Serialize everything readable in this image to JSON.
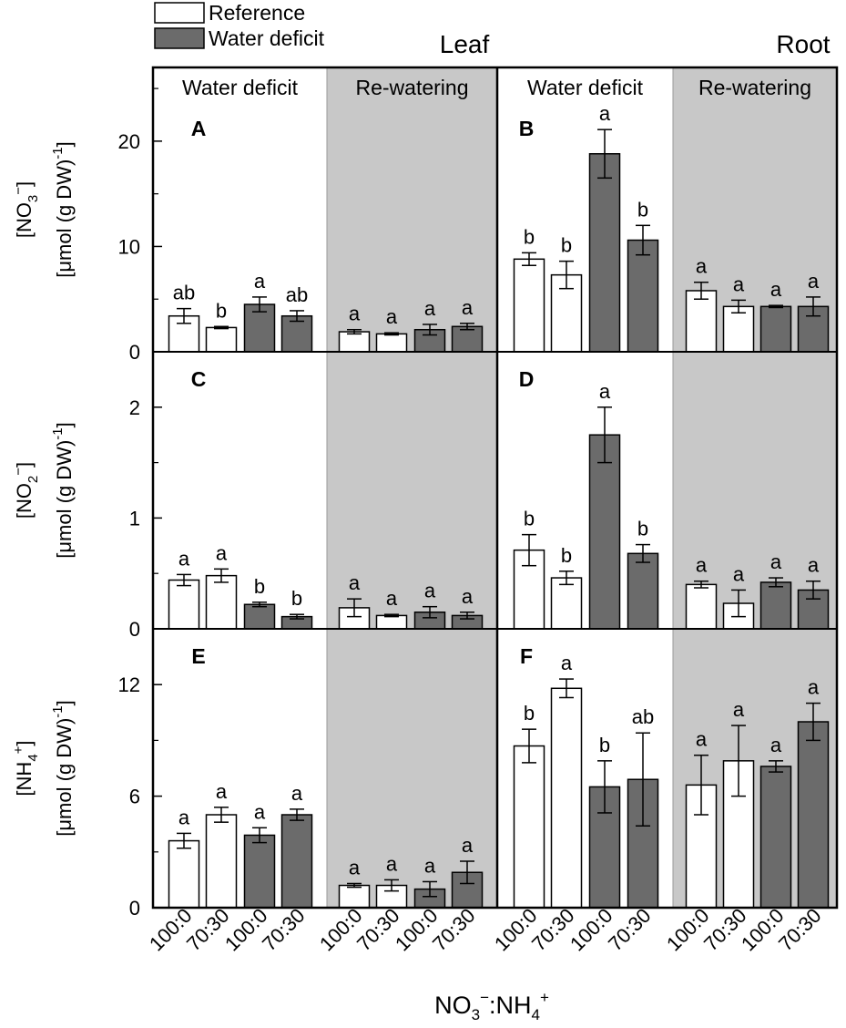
{
  "chart_data": {
    "type": "bar",
    "x_axis_label": {
      "base": "NO",
      "sub": "3",
      "sup": "−",
      "mid": ":NH",
      "sub2": "4",
      "sup2": "+"
    },
    "legend": [
      {
        "key": "reference",
        "label": "Reference",
        "color": "#ffffff"
      },
      {
        "key": "deficit",
        "label": "Water deficit",
        "color": "#6b6b6b"
      }
    ],
    "columns": [
      {
        "title": "Leaf",
        "periods": [
          "Water deficit",
          "Re-watering"
        ]
      },
      {
        "title": "Root",
        "periods": [
          "Water deficit",
          "Re-watering"
        ]
      }
    ],
    "rewatering_shade": "#c8c8c8",
    "categories": [
      "100:0",
      "70:30",
      "100:0",
      "70:30"
    ],
    "bar_groups": [
      "reference",
      "reference",
      "deficit",
      "deficit"
    ],
    "rows": [
      {
        "ylabel_top": {
          "base": "[NO",
          "sub": "3",
          "sup": "−",
          "tail": "]"
        },
        "ylabel_bottom": {
          "base": "[μmol (g DW)",
          "sup": "-1",
          "tail": "]"
        },
        "ylim": [
          0,
          27
        ],
        "ticks": [
          0,
          10,
          20
        ],
        "panels": [
          {
            "label": "A",
            "water_deficit": {
              "values": [
                3.4,
                2.3,
                4.5,
                3.4
              ],
              "errors": [
                0.7,
                0.1,
                0.7,
                0.5
              ],
              "letters": [
                "ab",
                "b",
                "a",
                "ab"
              ]
            },
            "re_watering": {
              "values": [
                1.9,
                1.7,
                2.1,
                2.4
              ],
              "errors": [
                0.2,
                0.1,
                0.5,
                0.3
              ],
              "letters": [
                "a",
                "a",
                "a",
                "a"
              ]
            }
          },
          {
            "label": "B",
            "water_deficit": {
              "values": [
                8.8,
                7.3,
                18.8,
                10.6
              ],
              "errors": [
                0.6,
                1.3,
                2.3,
                1.4
              ],
              "letters": [
                "b",
                "b",
                "a",
                "b"
              ]
            },
            "re_watering": {
              "values": [
                5.8,
                4.3,
                4.3,
                4.3
              ],
              "errors": [
                0.8,
                0.6,
                0.1,
                0.9
              ],
              "letters": [
                "a",
                "a",
                "a",
                "a"
              ]
            }
          }
        ]
      },
      {
        "ylabel_top": {
          "base": "[NO",
          "sub": "2",
          "sup": "−",
          "tail": "]"
        },
        "ylabel_bottom": {
          "base": "[μmol (g DW)",
          "sup": "-1",
          "tail": "]"
        },
        "ylim": [
          0,
          2.5
        ],
        "ticks": [
          0,
          1,
          2
        ],
        "panels": [
          {
            "label": "C",
            "water_deficit": {
              "values": [
                0.44,
                0.48,
                0.22,
                0.11
              ],
              "errors": [
                0.05,
                0.06,
                0.02,
                0.02
              ],
              "letters": [
                "a",
                "a",
                "b",
                "b"
              ]
            },
            "re_watering": {
              "values": [
                0.19,
                0.12,
                0.15,
                0.12
              ],
              "errors": [
                0.08,
                0.01,
                0.05,
                0.03
              ],
              "letters": [
                "a",
                "a",
                "a",
                "a"
              ]
            }
          },
          {
            "label": "D",
            "water_deficit": {
              "values": [
                0.71,
                0.46,
                1.75,
                0.68
              ],
              "errors": [
                0.14,
                0.06,
                0.25,
                0.08
              ],
              "letters": [
                "b",
                "b",
                "a",
                "b"
              ]
            },
            "re_watering": {
              "values": [
                0.4,
                0.23,
                0.42,
                0.35
              ],
              "errors": [
                0.03,
                0.12,
                0.04,
                0.08
              ],
              "letters": [
                "a",
                "a",
                "a",
                "a"
              ]
            }
          }
        ]
      },
      {
        "ylabel_top": {
          "base": "[NH",
          "sub": "4",
          "sup": "+",
          "tail": "]"
        },
        "ylabel_bottom": {
          "base": "[μmol (g DW)",
          "sup": "-1",
          "tail": "]"
        },
        "ylim": [
          0,
          15
        ],
        "ticks": [
          0,
          6,
          12
        ],
        "panels": [
          {
            "label": "E",
            "water_deficit": {
              "values": [
                3.6,
                5.0,
                3.9,
                5.0
              ],
              "errors": [
                0.4,
                0.4,
                0.4,
                0.3
              ],
              "letters": [
                "a",
                "a",
                "a",
                "a"
              ]
            },
            "re_watering": {
              "values": [
                1.2,
                1.2,
                1.0,
                1.9
              ],
              "errors": [
                0.1,
                0.3,
                0.4,
                0.6
              ],
              "letters": [
                "a",
                "a",
                "a",
                "a"
              ]
            }
          },
          {
            "label": "F",
            "water_deficit": {
              "values": [
                8.7,
                11.8,
                6.5,
                6.9
              ],
              "errors": [
                0.9,
                0.5,
                1.4,
                2.5
              ],
              "letters": [
                "b",
                "a",
                "b",
                "ab"
              ]
            },
            "re_watering": {
              "values": [
                6.6,
                7.9,
                7.6,
                10.0
              ],
              "errors": [
                1.6,
                1.9,
                0.3,
                1.0
              ],
              "letters": [
                "a",
                "a",
                "a",
                "a"
              ]
            }
          }
        ]
      }
    ]
  }
}
